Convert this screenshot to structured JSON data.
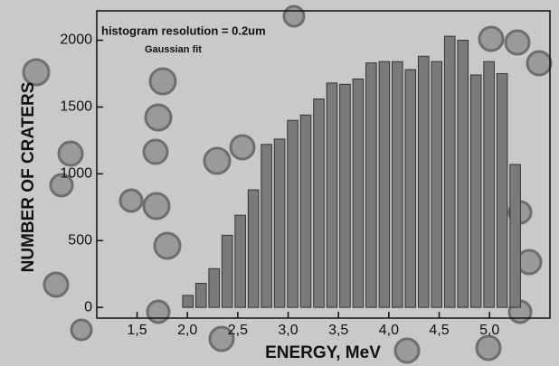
{
  "chart_data": {
    "type": "histogram",
    "annotations": [
      "histogram resolution = 0.2um",
      "Gaussian fit"
    ],
    "x_label": "ENERGY, MeV",
    "y_label": "NUMBER OF CRATERS",
    "bins": [
      1.94,
      2.07,
      2.2,
      2.33,
      2.46,
      2.59,
      2.72,
      2.85,
      2.98,
      3.11,
      3.24,
      3.37,
      3.5,
      3.63,
      3.76,
      3.89,
      4.02,
      4.15,
      4.28,
      4.41,
      4.54,
      4.67,
      4.8,
      4.93,
      5.06,
      5.19,
      5.32
    ],
    "values": [
      90,
      180,
      290,
      540,
      690,
      880,
      1220,
      1260,
      1400,
      1440,
      1560,
      1680,
      1670,
      1710,
      1830,
      1840,
      1840,
      1780,
      1880,
      1840,
      2030,
      2000,
      1740,
      1840,
      1750,
      1070
    ],
    "color": "#7a7a7a",
    "xlim": [
      1.1,
      5.6
    ],
    "xticks": [
      {
        "value": 1.5,
        "label": "1,5"
      },
      {
        "value": 2.0,
        "label": "2,0"
      },
      {
        "value": 2.5,
        "label": "2,5"
      },
      {
        "value": 3.0,
        "label": "3,0"
      },
      {
        "value": 3.5,
        "label": "3,5"
      },
      {
        "value": 4.0,
        "label": "4,0"
      },
      {
        "value": 4.5,
        "label": "4,5"
      },
      {
        "value": 5.0,
        "label": "5,0"
      }
    ],
    "ylim": [
      -80,
      2220
    ],
    "yticks": [
      0,
      500,
      1000,
      1500,
      2000
    ]
  }
}
